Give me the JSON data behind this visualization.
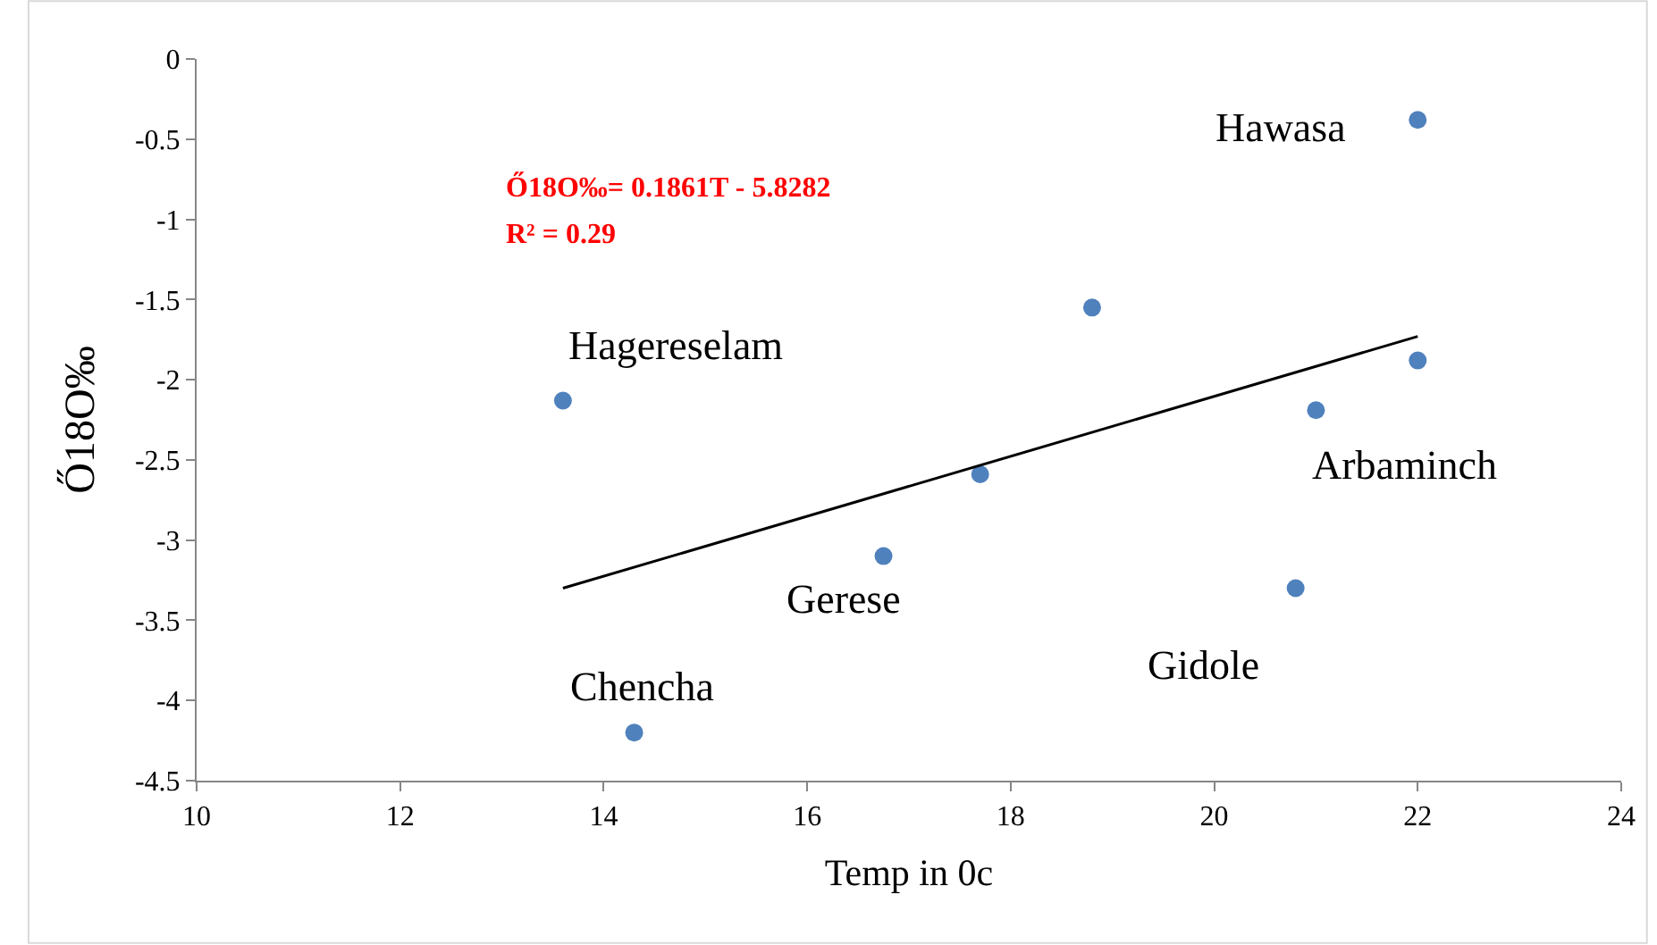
{
  "chart_data": {
    "type": "scatter",
    "xlabel": "Temp in 0c",
    "ylabel": "Ő18O‰",
    "xlim": [
      10,
      24
    ],
    "xticks": [
      10,
      12,
      14,
      16,
      18,
      20,
      22,
      24
    ],
    "ylim": [
      -4.5,
      0
    ],
    "yticks": [
      -4.5,
      -4,
      -3.5,
      -3,
      -2.5,
      -2,
      -1.5,
      -1,
      -0.5,
      0
    ],
    "series": [
      {
        "marker": "circle",
        "color": "#4f81bd",
        "x": [
          22,
          18.8,
          13.6,
          22,
          21,
          17.7,
          16.75,
          20.8,
          14.3
        ],
        "values": [
          -0.38,
          -1.55,
          -2.13,
          -1.88,
          -2.19,
          -2.59,
          -3.1,
          -3.3,
          -4.2
        ]
      },
      {
        "type": "line",
        "marker": "none",
        "color": "#000000",
        "line_style": "solid",
        "x": [
          13.6,
          22
        ],
        "values": [
          -3.3,
          -1.73
        ]
      }
    ],
    "annotations": [
      "Ő18O‰= 0.1861T - 5.8282",
      "R² = 0.29",
      "Hawasa",
      "Hagereselam",
      "Arbaminch",
      "Gerese",
      "Gidole",
      "Chencha"
    ]
  }
}
